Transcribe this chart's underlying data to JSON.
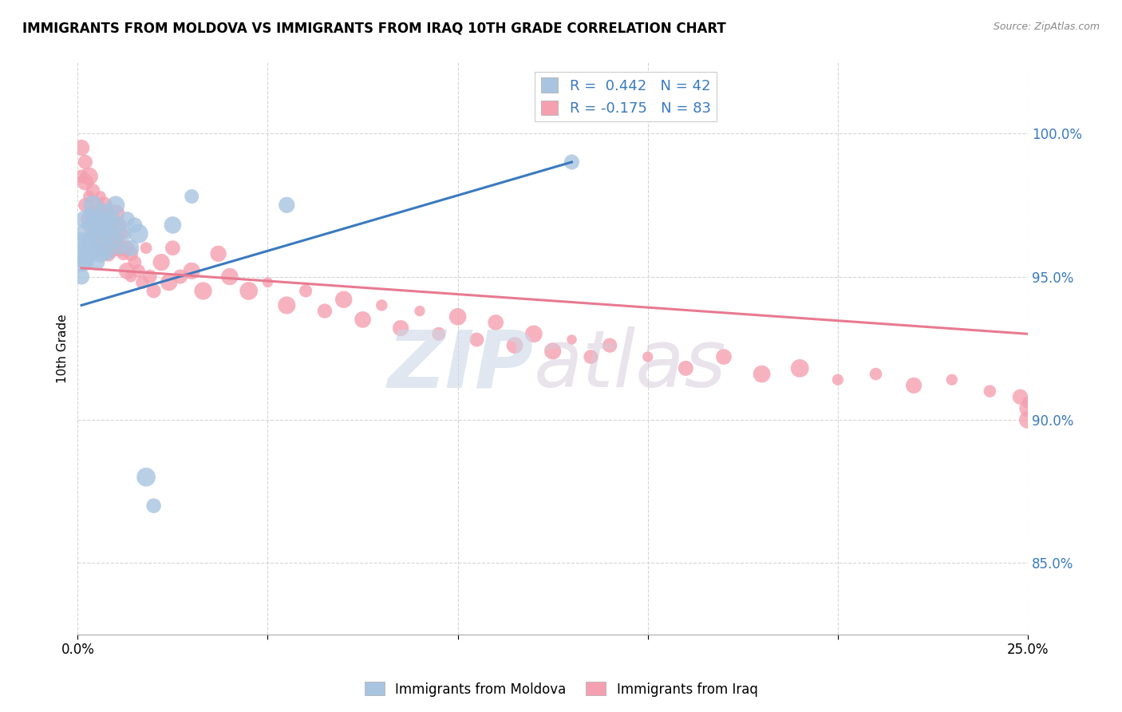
{
  "title": "IMMIGRANTS FROM MOLDOVA VS IMMIGRANTS FROM IRAQ 10TH GRADE CORRELATION CHART",
  "source": "Source: ZipAtlas.com",
  "ylabel": "10th Grade",
  "ytick_labels": [
    "85.0%",
    "90.0%",
    "95.0%",
    "100.0%"
  ],
  "ytick_values": [
    0.85,
    0.9,
    0.95,
    1.0
  ],
  "xlim": [
    0.0,
    0.25
  ],
  "ylim": [
    0.825,
    1.025
  ],
  "moldova_color": "#a8c4e0",
  "iraq_color": "#f4a0b0",
  "moldova_line_color": "#3a7abf",
  "iraq_line_color": "#e87a90",
  "background_color": "#ffffff",
  "moldova_x": [
    0.001,
    0.001,
    0.001,
    0.002,
    0.002,
    0.002,
    0.002,
    0.003,
    0.003,
    0.003,
    0.003,
    0.004,
    0.004,
    0.004,
    0.004,
    0.005,
    0.005,
    0.005,
    0.006,
    0.006,
    0.006,
    0.007,
    0.007,
    0.007,
    0.008,
    0.008,
    0.009,
    0.009,
    0.01,
    0.01,
    0.011,
    0.012,
    0.013,
    0.014,
    0.015,
    0.016,
    0.018,
    0.02,
    0.025,
    0.03,
    0.055,
    0.13
  ],
  "moldova_y": [
    0.96,
    0.955,
    0.95,
    0.97,
    0.965,
    0.96,
    0.955,
    0.972,
    0.968,
    0.962,
    0.958,
    0.975,
    0.97,
    0.965,
    0.958,
    0.968,
    0.962,
    0.955,
    0.97,
    0.965,
    0.958,
    0.972,
    0.966,
    0.96,
    0.965,
    0.958,
    0.97,
    0.963,
    0.975,
    0.968,
    0.96,
    0.965,
    0.97,
    0.96,
    0.968,
    0.965,
    0.88,
    0.87,
    0.968,
    0.978,
    0.975,
    0.99
  ],
  "iraq_x": [
    0.001,
    0.001,
    0.002,
    0.002,
    0.002,
    0.003,
    0.003,
    0.003,
    0.004,
    0.004,
    0.004,
    0.005,
    0.005,
    0.005,
    0.006,
    0.006,
    0.006,
    0.007,
    0.007,
    0.007,
    0.008,
    0.008,
    0.008,
    0.009,
    0.009,
    0.01,
    0.01,
    0.011,
    0.011,
    0.012,
    0.012,
    0.013,
    0.013,
    0.014,
    0.014,
    0.015,
    0.016,
    0.017,
    0.018,
    0.019,
    0.02,
    0.022,
    0.024,
    0.025,
    0.027,
    0.03,
    0.033,
    0.037,
    0.04,
    0.045,
    0.05,
    0.055,
    0.06,
    0.065,
    0.07,
    0.075,
    0.08,
    0.085,
    0.09,
    0.095,
    0.1,
    0.105,
    0.11,
    0.115,
    0.12,
    0.125,
    0.13,
    0.135,
    0.14,
    0.15,
    0.16,
    0.17,
    0.18,
    0.19,
    0.2,
    0.21,
    0.22,
    0.23,
    0.24,
    0.248,
    0.25,
    0.25,
    0.25
  ],
  "iraq_y": [
    0.995,
    0.985,
    0.99,
    0.983,
    0.975,
    0.985,
    0.978,
    0.97,
    0.98,
    0.972,
    0.965,
    0.975,
    0.968,
    0.96,
    0.978,
    0.97,
    0.963,
    0.975,
    0.968,
    0.96,
    0.972,
    0.965,
    0.958,
    0.968,
    0.96,
    0.972,
    0.963,
    0.968,
    0.96,
    0.965,
    0.958,
    0.96,
    0.952,
    0.958,
    0.95,
    0.955,
    0.952,
    0.948,
    0.96,
    0.95,
    0.945,
    0.955,
    0.948,
    0.96,
    0.95,
    0.952,
    0.945,
    0.958,
    0.95,
    0.945,
    0.948,
    0.94,
    0.945,
    0.938,
    0.942,
    0.935,
    0.94,
    0.932,
    0.938,
    0.93,
    0.936,
    0.928,
    0.934,
    0.926,
    0.93,
    0.924,
    0.928,
    0.922,
    0.926,
    0.922,
    0.918,
    0.922,
    0.916,
    0.918,
    0.914,
    0.916,
    0.912,
    0.914,
    0.91,
    0.908,
    0.906,
    0.904,
    0.9
  ],
  "mol_line_x": [
    0.001,
    0.13
  ],
  "mol_line_y": [
    0.94,
    0.99
  ],
  "iraq_line_x": [
    0.001,
    0.25
  ],
  "iraq_line_y": [
    0.953,
    0.93
  ]
}
